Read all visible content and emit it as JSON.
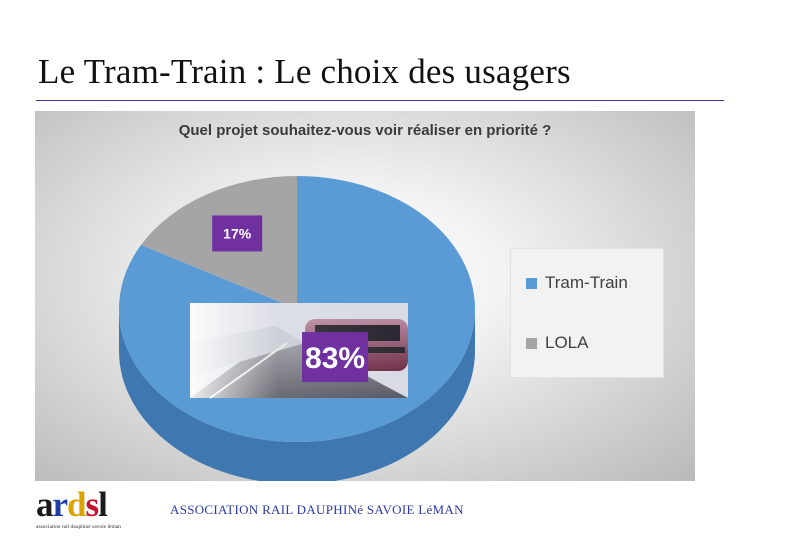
{
  "slide": {
    "title": "Le Tram-Train : Le choix des usagers"
  },
  "chart_data": {
    "type": "pie",
    "title": "Quel projet souhaitez-vous voir réaliser en priorité ?",
    "slices": [
      {
        "label": "Tram-Train",
        "value": 83,
        "display": "83%",
        "color": "#5b9bd5"
      },
      {
        "label": "LOLA",
        "value": 17,
        "display": "17%",
        "color": "#a5a5a5"
      }
    ],
    "legend": {
      "placement": "right",
      "items": [
        "Tram-Train",
        "LOLA"
      ]
    },
    "label_badge_color": "#7030a0",
    "style": "3d-tilted",
    "image": "tram-photo"
  },
  "footer": {
    "logo": {
      "text": "ardsl",
      "subtext": "association rail dauphiné savoie léman"
    },
    "org_name": "ASSOCIATION RAIL DAUPHINé SAVOIE LéMAN"
  }
}
